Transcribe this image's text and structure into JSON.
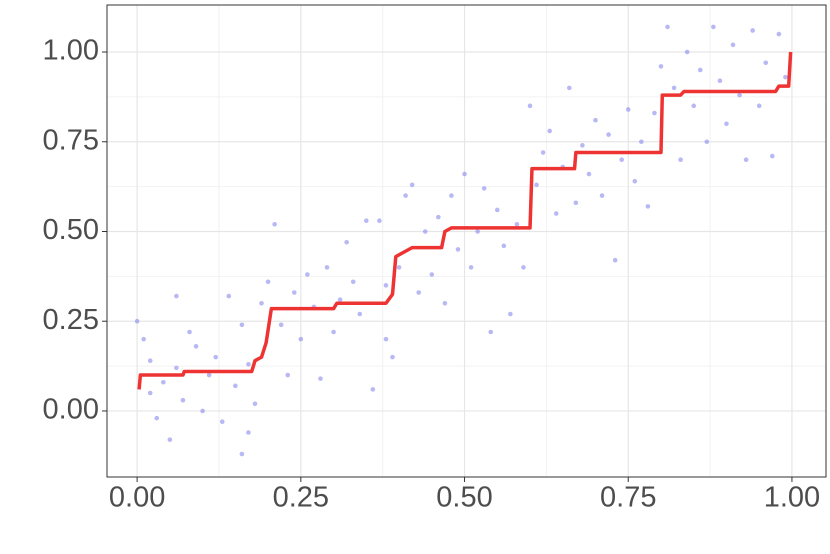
{
  "chart_data": {
    "type": "scatter",
    "xlim": [
      -0.046,
      1.052
    ],
    "ylim": [
      -0.184,
      1.131
    ],
    "xticks": [
      {
        "value": 0,
        "label": "0.00"
      },
      0.25,
      {
        "value": 0.5,
        "label": "0.50"
      },
      0.75,
      {
        "value": 1,
        "label": "1.00"
      }
    ],
    "yticks": [
      {
        "value": 0,
        "label": "0.00"
      },
      0.25,
      {
        "value": 0.5,
        "label": "0.50"
      },
      0.75,
      {
        "value": 1,
        "label": "1.00"
      }
    ],
    "grid": true,
    "series": [
      {
        "type": "scatter",
        "color": "#8888ee",
        "x": [
          0.0,
          0.01,
          0.02,
          0.02,
          0.03,
          0.04,
          0.05,
          0.06,
          0.06,
          0.07,
          0.08,
          0.09,
          0.1,
          0.11,
          0.12,
          0.13,
          0.14,
          0.15,
          0.16,
          0.17,
          0.17,
          0.16,
          0.18,
          0.19,
          0.2,
          0.21,
          0.22,
          0.23,
          0.24,
          0.25,
          0.26,
          0.27,
          0.28,
          0.29,
          0.3,
          0.31,
          0.32,
          0.33,
          0.34,
          0.35,
          0.36,
          0.37,
          0.38,
          0.38,
          0.39,
          0.4,
          0.41,
          0.42,
          0.43,
          0.44,
          0.45,
          0.46,
          0.47,
          0.48,
          0.49,
          0.5,
          0.51,
          0.52,
          0.53,
          0.54,
          0.55,
          0.56,
          0.57,
          0.58,
          0.59,
          0.6,
          0.61,
          0.62,
          0.63,
          0.64,
          0.65,
          0.66,
          0.67,
          0.68,
          0.69,
          0.7,
          0.71,
          0.72,
          0.73,
          0.74,
          0.75,
          0.76,
          0.77,
          0.78,
          0.79,
          0.8,
          0.81,
          0.82,
          0.83,
          0.84,
          0.85,
          0.86,
          0.87,
          0.88,
          0.89,
          0.9,
          0.91,
          0.92,
          0.93,
          0.94,
          0.95,
          0.96,
          0.97,
          0.98,
          0.99
        ],
        "values": [
          0.25,
          0.2,
          0.05,
          0.14,
          -0.02,
          0.08,
          -0.08,
          0.32,
          0.12,
          0.03,
          0.22,
          0.18,
          0.0,
          0.1,
          0.15,
          -0.03,
          0.32,
          0.07,
          0.24,
          -0.06,
          0.13,
          -0.12,
          0.02,
          0.3,
          0.36,
          0.52,
          0.24,
          0.1,
          0.33,
          0.2,
          0.38,
          0.29,
          0.09,
          0.4,
          0.22,
          0.31,
          0.47,
          0.36,
          0.27,
          0.53,
          0.06,
          0.53,
          0.2,
          0.35,
          0.15,
          0.4,
          0.6,
          0.63,
          0.33,
          0.5,
          0.38,
          0.54,
          0.3,
          0.6,
          0.45,
          0.66,
          0.4,
          0.5,
          0.62,
          0.22,
          0.56,
          0.46,
          0.27,
          0.52,
          0.4,
          0.85,
          0.63,
          0.72,
          0.78,
          0.55,
          0.68,
          0.9,
          0.58,
          0.74,
          0.66,
          0.81,
          0.6,
          0.77,
          0.42,
          0.7,
          0.84,
          0.64,
          0.75,
          0.57,
          0.83,
          0.96,
          1.07,
          0.9,
          0.7,
          1.0,
          0.85,
          0.95,
          0.75,
          1.07,
          0.92,
          0.8,
          1.02,
          0.88,
          0.7,
          1.06,
          0.85,
          0.97,
          0.71,
          1.05,
          0.93
        ]
      },
      {
        "type": "line",
        "color": "#ee3333",
        "x": [
          0.003,
          0.005,
          0.07,
          0.072,
          0.175,
          0.18,
          0.19,
          0.197,
          0.205,
          0.3,
          0.305,
          0.38,
          0.39,
          0.395,
          0.405,
          0.42,
          0.465,
          0.47,
          0.48,
          0.6,
          0.603,
          0.668,
          0.67,
          0.8,
          0.802,
          0.83,
          0.835,
          0.975,
          0.98,
          0.995,
          0.998
        ],
        "values": [
          0.06,
          0.1,
          0.1,
          0.11,
          0.11,
          0.14,
          0.15,
          0.19,
          0.285,
          0.285,
          0.3,
          0.3,
          0.325,
          0.43,
          0.44,
          0.455,
          0.455,
          0.5,
          0.51,
          0.51,
          0.675,
          0.675,
          0.72,
          0.72,
          0.88,
          0.88,
          0.89,
          0.89,
          0.905,
          0.905,
          1.0
        ]
      }
    ]
  }
}
